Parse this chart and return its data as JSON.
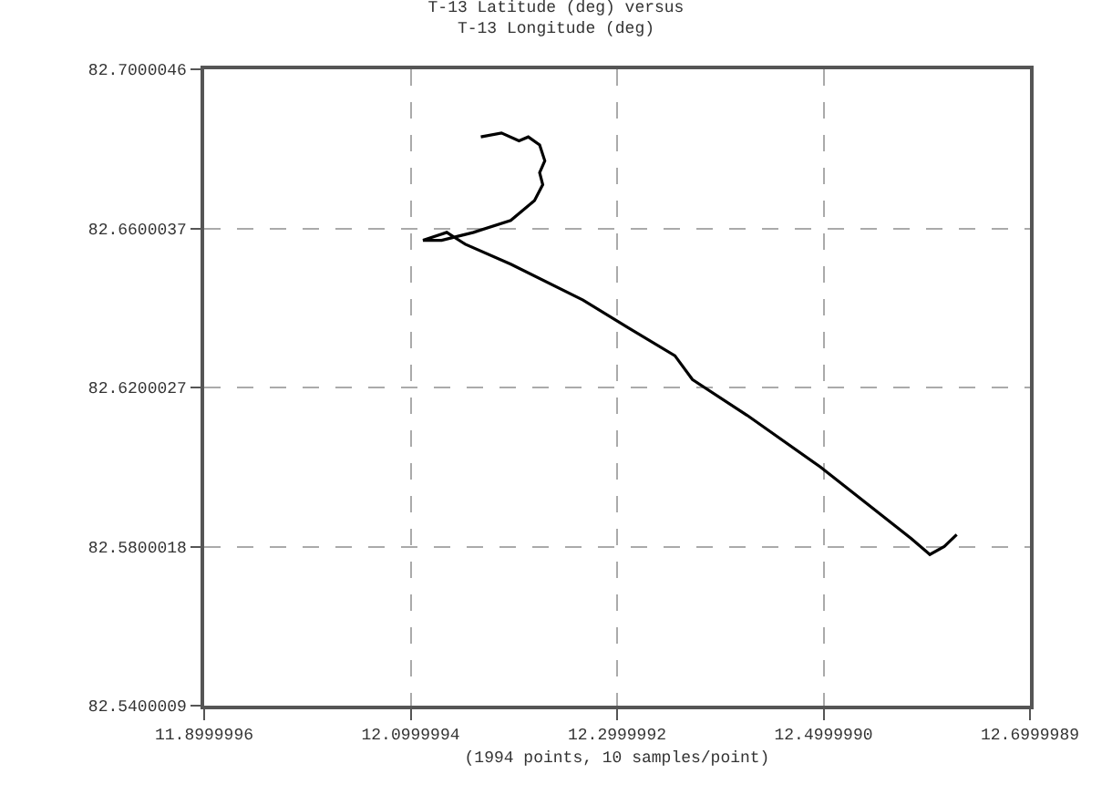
{
  "chart_data": {
    "type": "line",
    "title": "T-13 Latitude (deg) versus",
    "subtitle": "T-13 Longitude (deg)",
    "xlabel": "(1994 points, 10 samples/point)",
    "x": [
      12.168,
      12.188,
      12.205,
      12.214,
      12.225,
      12.23,
      12.225,
      12.228,
      12.22,
      12.197,
      12.161,
      12.13,
      12.112,
      12.135,
      12.153,
      12.197,
      12.267,
      12.311,
      12.356,
      12.373,
      12.426,
      12.497,
      12.541,
      12.585,
      12.603,
      12.617,
      12.629
    ],
    "series": [
      {
        "color": "#000000",
        "values": [
          82.683,
          82.684,
          82.682,
          82.683,
          82.681,
          82.677,
          82.674,
          82.671,
          82.667,
          82.662,
          82.659,
          82.657,
          82.657,
          82.659,
          82.656,
          82.651,
          82.642,
          82.635,
          82.628,
          82.622,
          82.613,
          82.6,
          82.591,
          82.582,
          82.578,
          82.58,
          82.583
        ]
      }
    ],
    "xlim": [
      11.8999996,
      12.6999989
    ],
    "ylim": [
      82.5400009,
      82.7000046
    ],
    "xticks": [
      11.8999996,
      12.0999994,
      12.2999992,
      {
        "value": 12.499999,
        "label": "12.4999990"
      },
      12.6999989
    ],
    "yticks": [
      82.5400009,
      82.5800018,
      82.6200027,
      82.6600037,
      82.7000046
    ],
    "grid": true,
    "marker": "none",
    "line_style": "solid"
  }
}
